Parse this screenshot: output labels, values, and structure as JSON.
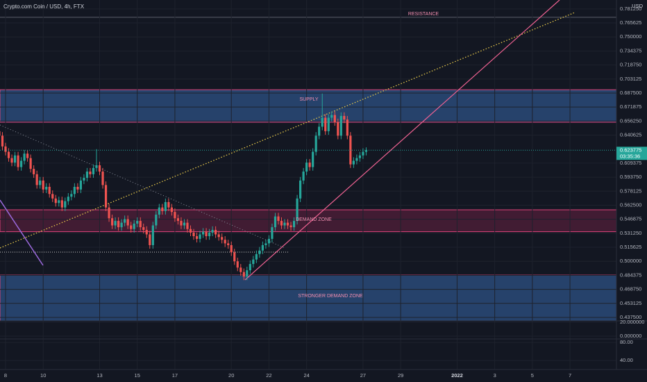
{
  "chart_data": {
    "type": "candlestick",
    "title": "Crypto.com Coin / USD, 4h, FTX",
    "currency": "USD",
    "up_color": "#26a69a",
    "down_color": "#ef5350",
    "grid": true,
    "ylim": [
      0.4336,
      0.7912
    ],
    "yticks": [
      {
        "value": 0.78125,
        "label": "0.781250"
      },
      0.765625,
      {
        "value": 0.75,
        "label": "0.750000"
      },
      0.734375,
      {
        "value": 0.71875,
        "label": "0.718750"
      },
      0.703125,
      {
        "value": 0.6875,
        "label": "0.687500"
      },
      0.671875,
      {
        "value": 0.65625,
        "label": "0.656250"
      },
      0.640625,
      0.609375,
      {
        "value": 0.59375,
        "label": "0.593750"
      },
      0.578125,
      {
        "value": 0.5625,
        "label": "0.562500"
      },
      0.546875,
      {
        "value": 0.53125,
        "label": "0.531250"
      },
      0.515625,
      {
        "value": 0.5,
        "label": "0.500000"
      },
      0.484375,
      {
        "value": 0.46875,
        "label": "0.468750"
      },
      0.453125,
      {
        "value": 0.4375,
        "label": "0.437500"
      }
    ],
    "categories": [
      null,
      null,
      "8",
      null,
      null,
      null,
      null,
      null,
      null,
      null,
      null,
      null,
      null,
      null,
      "10",
      null,
      null,
      null,
      null,
      null,
      null,
      null,
      null,
      null,
      null,
      null,
      null,
      null,
      null,
      null,
      null,
      null,
      "13",
      null,
      null,
      null,
      null,
      null,
      null,
      null,
      null,
      null,
      null,
      null,
      "15",
      null,
      null,
      null,
      null,
      null,
      null,
      null,
      null,
      null,
      null,
      null,
      "17",
      null,
      null,
      null,
      null,
      null,
      null,
      null,
      null,
      null,
      null,
      null,
      null,
      null,
      null,
      null,
      null,
      null,
      "20",
      null,
      null,
      null,
      null,
      null,
      null,
      null,
      null,
      null,
      null,
      null,
      "22",
      null,
      null,
      null,
      null,
      null,
      null,
      null,
      null,
      null,
      null,
      null,
      "24",
      null,
      null,
      null,
      null,
      null,
      null,
      null,
      null,
      null,
      null,
      null,
      null,
      null,
      null,
      null,
      null,
      null,
      "27",
      null,
      null,
      null,
      null,
      null,
      null,
      null,
      null,
      null,
      null,
      null,
      "29",
      null,
      null,
      null,
      null,
      null,
      null,
      null,
      null,
      null,
      null,
      null,
      null,
      null,
      null,
      null,
      null,
      null,
      "2022",
      null,
      null,
      null,
      null,
      null,
      null,
      null,
      null,
      null,
      null,
      null,
      "3",
      null,
      null,
      null,
      null,
      null,
      null,
      null,
      null,
      null,
      null,
      null,
      "5",
      null,
      null,
      null,
      null,
      null,
      null,
      null,
      null,
      null,
      null,
      null,
      "7",
      null,
      null
    ],
    "open": [
      0.645,
      0.64,
      0.628,
      0.622,
      0.615,
      0.61,
      0.618,
      0.605,
      0.612,
      0.62,
      0.615,
      0.603,
      0.597,
      0.585,
      0.59,
      0.58,
      0.583,
      0.575,
      0.57,
      0.565,
      0.568,
      0.56,
      0.567,
      0.572,
      0.575,
      0.583,
      0.58,
      0.59,
      0.593,
      0.6,
      0.597,
      0.604,
      0.607,
      0.6,
      0.585,
      0.56,
      0.548,
      0.54,
      0.545,
      0.538,
      0.543,
      0.547,
      0.54,
      0.536,
      0.542,
      0.545,
      0.538,
      0.535,
      0.53,
      0.518,
      0.54,
      0.552,
      0.56,
      0.556,
      0.566,
      0.56,
      0.555,
      0.548,
      0.545,
      0.54,
      0.543,
      0.536,
      0.532,
      0.528,
      0.525,
      0.53,
      0.533,
      0.528,
      0.532,
      0.535,
      0.53,
      0.527,
      0.524,
      0.52,
      0.518,
      0.51,
      0.5,
      0.493,
      0.488,
      0.483,
      0.49,
      0.497,
      0.502,
      0.508,
      0.512,
      0.518,
      0.52,
      0.525,
      0.538,
      0.55,
      0.545,
      0.54,
      0.543,
      0.54,
      0.538,
      0.545,
      0.57,
      0.59,
      0.6,
      0.61,
      0.605,
      0.622,
      0.64,
      0.65,
      0.66,
      0.645,
      0.66,
      0.663,
      0.655,
      0.64,
      0.662,
      0.658,
      0.64,
      0.608,
      0.612,
      0.615,
      0.618,
      0.622,
      null,
      null,
      null,
      null,
      null,
      null,
      null,
      null,
      null,
      null,
      null,
      null,
      null,
      null,
      null,
      null,
      null,
      null,
      null,
      null,
      null,
      null,
      null,
      null,
      null,
      null,
      null,
      null,
      null,
      null,
      null,
      null,
      null,
      null,
      null,
      null,
      null,
      null,
      null,
      null,
      null,
      null,
      null,
      null,
      null,
      null,
      null,
      null,
      null,
      null,
      null,
      null,
      null,
      null,
      null,
      null,
      null,
      null,
      null,
      null,
      null,
      null,
      null,
      null,
      null,
      null,
      null
    ],
    "high": [
      0.649,
      0.644,
      0.632,
      0.626,
      0.619,
      0.622,
      0.622,
      0.616,
      0.624,
      0.624,
      0.619,
      0.607,
      0.601,
      0.594,
      0.594,
      0.587,
      0.587,
      0.579,
      0.574,
      0.572,
      0.572,
      0.571,
      0.576,
      0.579,
      0.587,
      0.587,
      0.594,
      0.597,
      0.604,
      0.604,
      0.608,
      0.625,
      0.611,
      0.604,
      0.589,
      0.564,
      0.552,
      0.549,
      0.549,
      0.547,
      0.551,
      0.551,
      0.544,
      0.546,
      0.549,
      0.549,
      0.542,
      0.539,
      0.534,
      0.544,
      0.556,
      0.564,
      0.564,
      0.57,
      0.57,
      0.564,
      0.559,
      0.552,
      0.549,
      0.547,
      0.547,
      0.54,
      0.536,
      0.532,
      0.534,
      0.537,
      0.537,
      0.536,
      0.539,
      0.539,
      0.534,
      0.531,
      0.528,
      0.524,
      0.522,
      0.514,
      0.504,
      0.497,
      0.492,
      0.494,
      0.501,
      0.506,
      0.512,
      0.516,
      0.522,
      0.524,
      0.529,
      0.542,
      0.554,
      0.554,
      0.549,
      0.547,
      0.547,
      0.544,
      0.549,
      0.574,
      0.594,
      0.604,
      0.614,
      0.614,
      0.626,
      0.644,
      0.654,
      0.687,
      0.664,
      0.664,
      0.667,
      0.667,
      0.659,
      0.666,
      0.666,
      0.662,
      0.644,
      0.616,
      0.619,
      0.622,
      0.626,
      0.627,
      null,
      null,
      null,
      null,
      null,
      null,
      null,
      null,
      null,
      null,
      null,
      null,
      null,
      null,
      null,
      null,
      null,
      null,
      null,
      null,
      null,
      null,
      null,
      null,
      null,
      null,
      null,
      null,
      null,
      null,
      null,
      null,
      null,
      null,
      null,
      null,
      null,
      null,
      null,
      null,
      null,
      null,
      null,
      null,
      null,
      null,
      null,
      null,
      null,
      null,
      null,
      null,
      null,
      null,
      null,
      null,
      null,
      null,
      null,
      null,
      null,
      null,
      null,
      null,
      null,
      null,
      null
    ],
    "low": [
      0.636,
      0.624,
      0.618,
      0.611,
      0.606,
      0.606,
      0.601,
      0.601,
      0.608,
      0.611,
      0.599,
      0.593,
      0.581,
      0.581,
      0.576,
      0.576,
      0.571,
      0.566,
      0.561,
      0.561,
      0.556,
      0.556,
      0.563,
      0.568,
      0.571,
      0.576,
      0.576,
      0.586,
      0.589,
      0.593,
      0.593,
      0.6,
      0.596,
      0.581,
      0.556,
      0.544,
      0.536,
      0.536,
      0.534,
      0.534,
      0.539,
      0.536,
      0.532,
      0.532,
      0.538,
      0.534,
      0.531,
      0.526,
      0.514,
      0.514,
      0.536,
      0.548,
      0.552,
      0.552,
      0.556,
      0.551,
      0.544,
      0.541,
      0.536,
      0.536,
      0.532,
      0.528,
      0.524,
      0.521,
      0.521,
      0.526,
      0.524,
      0.524,
      0.528,
      0.526,
      0.523,
      0.52,
      0.516,
      0.514,
      0.506,
      0.496,
      0.489,
      0.484,
      0.479,
      0.479,
      0.486,
      0.493,
      0.498,
      0.504,
      0.508,
      0.514,
      0.516,
      0.521,
      0.534,
      0.541,
      0.536,
      0.536,
      0.536,
      0.534,
      0.534,
      0.541,
      0.566,
      0.586,
      0.596,
      0.601,
      0.601,
      0.618,
      0.636,
      0.646,
      0.641,
      0.641,
      0.656,
      0.651,
      0.636,
      0.636,
      0.654,
      0.636,
      0.604,
      0.604,
      0.608,
      0.611,
      0.614,
      0.618,
      null,
      null,
      null,
      null,
      null,
      null,
      null,
      null,
      null,
      null,
      null,
      null,
      null,
      null,
      null,
      null,
      null,
      null,
      null,
      null,
      null,
      null,
      null,
      null,
      null,
      null,
      null,
      null,
      null,
      null,
      null,
      null,
      null,
      null,
      null,
      null,
      null,
      null,
      null,
      null,
      null,
      null,
      null,
      null,
      null,
      null,
      null,
      null,
      null,
      null,
      null,
      null,
      null,
      null,
      null,
      null,
      null,
      null,
      null,
      null,
      null,
      null,
      null,
      null,
      null,
      null,
      null
    ],
    "close": [
      0.64,
      0.628,
      0.622,
      0.615,
      0.61,
      0.618,
      0.605,
      0.612,
      0.62,
      0.615,
      0.603,
      0.597,
      0.585,
      0.59,
      0.58,
      0.583,
      0.575,
      0.57,
      0.565,
      0.568,
      0.56,
      0.567,
      0.572,
      0.575,
      0.583,
      0.58,
      0.59,
      0.593,
      0.6,
      0.597,
      0.604,
      0.607,
      0.6,
      0.585,
      0.56,
      0.548,
      0.54,
      0.545,
      0.538,
      0.543,
      0.547,
      0.54,
      0.536,
      0.542,
      0.545,
      0.538,
      0.535,
      0.53,
      0.518,
      0.54,
      0.552,
      0.56,
      0.556,
      0.566,
      0.56,
      0.555,
      0.548,
      0.545,
      0.54,
      0.543,
      0.536,
      0.532,
      0.528,
      0.525,
      0.53,
      0.533,
      0.528,
      0.532,
      0.535,
      0.53,
      0.527,
      0.524,
      0.52,
      0.518,
      0.51,
      0.5,
      0.493,
      0.488,
      0.483,
      0.49,
      0.497,
      0.502,
      0.508,
      0.512,
      0.518,
      0.52,
      0.525,
      0.538,
      0.55,
      0.545,
      0.54,
      0.543,
      0.54,
      0.538,
      0.545,
      0.57,
      0.59,
      0.6,
      0.61,
      0.605,
      0.622,
      0.64,
      0.65,
      0.66,
      0.645,
      0.66,
      0.663,
      0.655,
      0.64,
      0.662,
      0.658,
      0.64,
      0.608,
      0.612,
      0.615,
      0.618,
      0.622,
      0.623775,
      null,
      null,
      null,
      null,
      null,
      null,
      null,
      null,
      null,
      null,
      null,
      null,
      null,
      null,
      null,
      null,
      null,
      null,
      null,
      null,
      null,
      null,
      null,
      null,
      null,
      null,
      null,
      null,
      null,
      null,
      null,
      null,
      null,
      null,
      null,
      null,
      null,
      null,
      null,
      null,
      null,
      null,
      null,
      null,
      null,
      null,
      null,
      null,
      null,
      null,
      null,
      null,
      null,
      null,
      null,
      null,
      null,
      null,
      null,
      null,
      null,
      null,
      null,
      null,
      null,
      null,
      null
    ],
    "last_price_timer": "03:35:36",
    "resistance": {
      "label": "RESISTANCE",
      "value": 0.7719
    },
    "zones": [
      {
        "label": "SUPPLY",
        "range": [
          0.655,
          0.6912
        ],
        "color": "#2a4a78"
      },
      {
        "label": "DEMAND ZONE",
        "range": [
          0.533,
          0.5574
        ],
        "color": "#4a1d36"
      },
      {
        "label": "STRONGER DEMAND ZONE",
        "range": [
          0.4336,
          0.4847
        ],
        "color": "#2a4a78"
      }
    ],
    "panes": [
      {
        "ylim": [
          -4,
          22
        ],
        "yticks": [
          {
            "value": 20,
            "label": "20.000000"
          },
          {
            "value": 0,
            "label": "0.000000"
          }
        ]
      },
      {
        "ylim": [
          20,
          88
        ],
        "yticks": [
          {
            "value": 80,
            "label": "80.00"
          },
          {
            "value": 40,
            "label": "40.00"
          }
        ]
      }
    ]
  }
}
